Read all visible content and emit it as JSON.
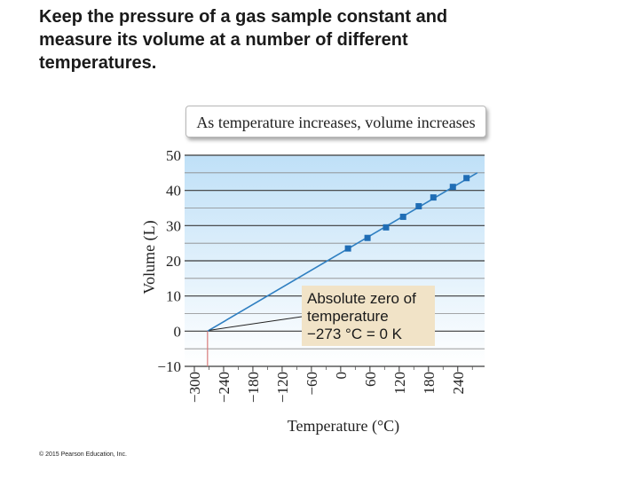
{
  "slide": {
    "heading_lines": [
      "Keep the pressure of a gas sample constant and",
      "measure its volume at a number of different",
      "temperatures."
    ],
    "copyright": "© 2015 Pearson Education, Inc."
  },
  "chart_data": {
    "type": "scatter",
    "title": "As temperature increases, volume increases",
    "xlabel": "Temperature (°C)",
    "ylabel": "Volume (L)",
    "xlim": [
      -320,
      295
    ],
    "ylim": [
      -10,
      50
    ],
    "x_ticks": [
      -300,
      -240,
      -180,
      -120,
      -60,
      0,
      60,
      120,
      180,
      240
    ],
    "y_ticks": [
      -10,
      0,
      10,
      20,
      30,
      40,
      50
    ],
    "grid": true,
    "series": [
      {
        "x": [
          15,
          55,
          93,
          128,
          160,
          190,
          230,
          258
        ],
        "y": [
          23.5,
          26.5,
          29.5,
          32.5,
          35.5,
          38,
          41,
          43.5
        ]
      }
    ],
    "trend_line": {
      "x": [
        -273,
        280
      ],
      "y": [
        0,
        45
      ]
    },
    "annotation": {
      "lines": [
        "Absolute zero of",
        "temperature",
        "−273 °C = 0 K"
      ],
      "x": -273,
      "y": 0
    },
    "colors": {
      "line": "#2f7fc1",
      "marker": "#1f6db5",
      "plot_bg_top": "#bfe0f7",
      "plot_bg_bottom": "#ffffff",
      "callout_bg": "#f1e3c7",
      "zero_marker": "#d87a7a"
    }
  }
}
